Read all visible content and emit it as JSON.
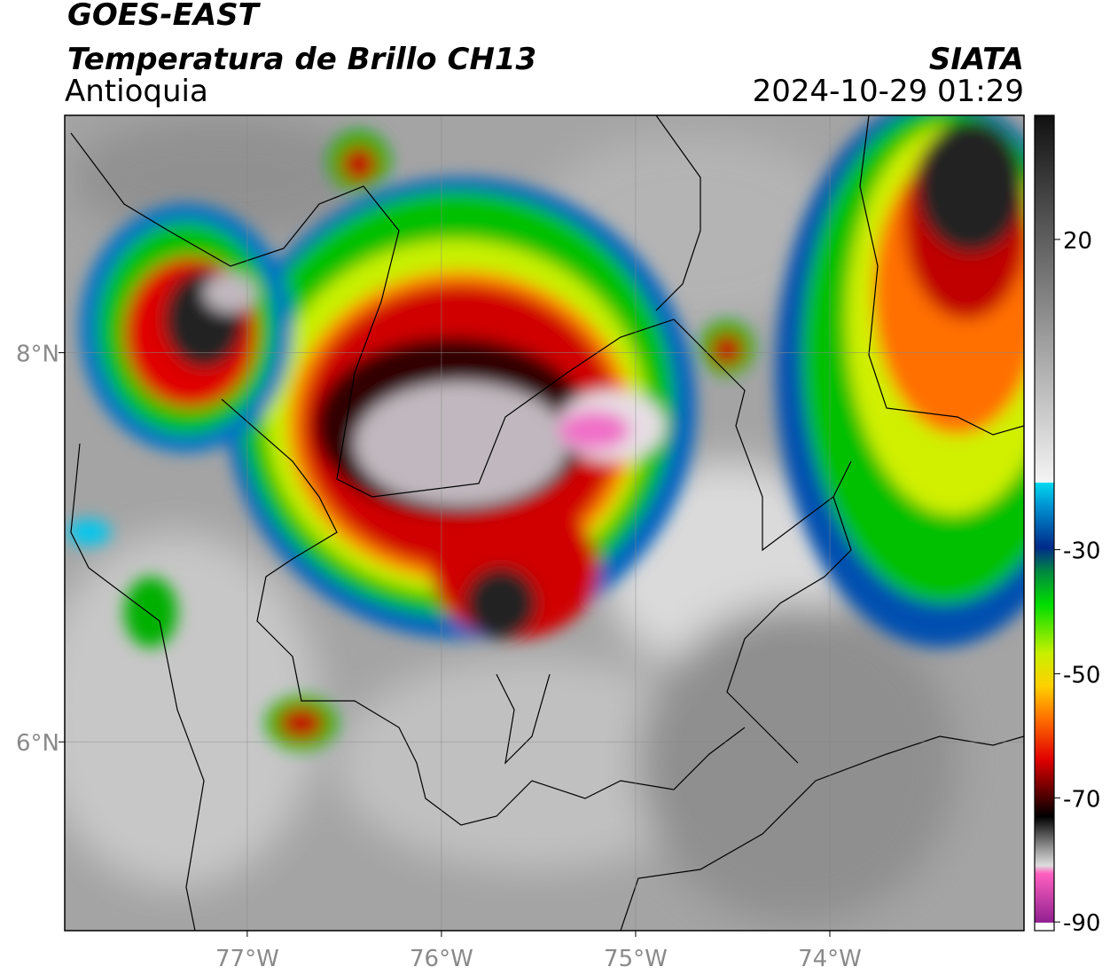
{
  "header": {
    "title": "GOES-EAST",
    "subtitle": "Temperatura de Brillo CH13",
    "region": "Antioquia",
    "source": "SIATA",
    "timestamp": "2024-10-29 01:29"
  },
  "map": {
    "xlim": [
      -77.94,
      -73.0
    ],
    "ylim": [
      5.03,
      9.22
    ],
    "xticks": [
      {
        "value": -77,
        "label": "77°W"
      },
      {
        "value": -76,
        "label": "76°W"
      },
      {
        "value": -75,
        "label": "75°W"
      },
      {
        "value": -74,
        "label": "74°W"
      }
    ],
    "yticks": [
      {
        "value": 6,
        "label": "6°N"
      },
      {
        "value": 8,
        "label": "8°N"
      }
    ],
    "grid": true
  },
  "colorbar": {
    "lim": [
      -91.4,
      40
    ],
    "ticks": [
      20,
      -30,
      -50,
      -70,
      -90
    ]
  }
}
